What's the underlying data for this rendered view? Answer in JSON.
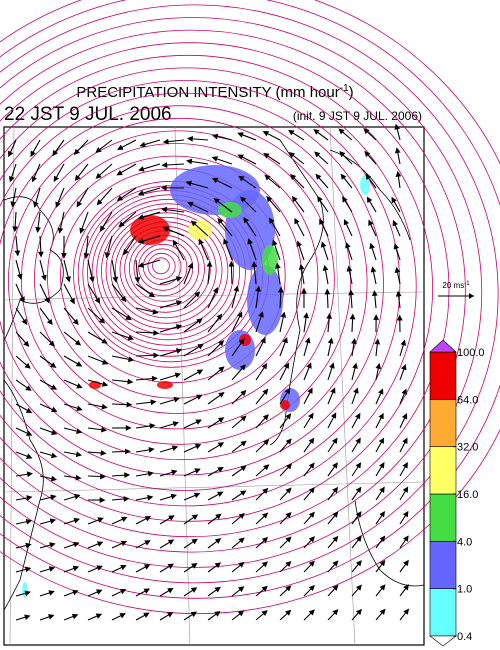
{
  "header": {
    "title_parts": [
      "PRECIPITATION INTENSITY (mm hour",
      "-1",
      ")"
    ],
    "valid_time": "22 JST 9 JUL. 2006",
    "init_time": "(init. 9 JST 9 JUL. 2006)"
  },
  "reference_vector": {
    "label_parts": [
      "20 ms",
      "-1"
    ]
  },
  "colorbar": {
    "levels": [
      {
        "value": 0.4,
        "label": "0.4"
      },
      {
        "value": 1,
        "label": "1.0"
      },
      {
        "value": 4,
        "label": "4.0"
      },
      {
        "value": 16,
        "label": "16.0"
      },
      {
        "value": 32,
        "label": "32.0"
      },
      {
        "value": 64,
        "label": "64.0"
      },
      {
        "value": 100,
        "label": "100.0"
      }
    ],
    "colors": [
      "#66ffff",
      "#6666ff",
      "#44dd44",
      "#ffff66",
      "#ffaa33",
      "#ee0000"
    ],
    "under_color": "#ffffff",
    "over_color": "#bb44ff"
  }
}
